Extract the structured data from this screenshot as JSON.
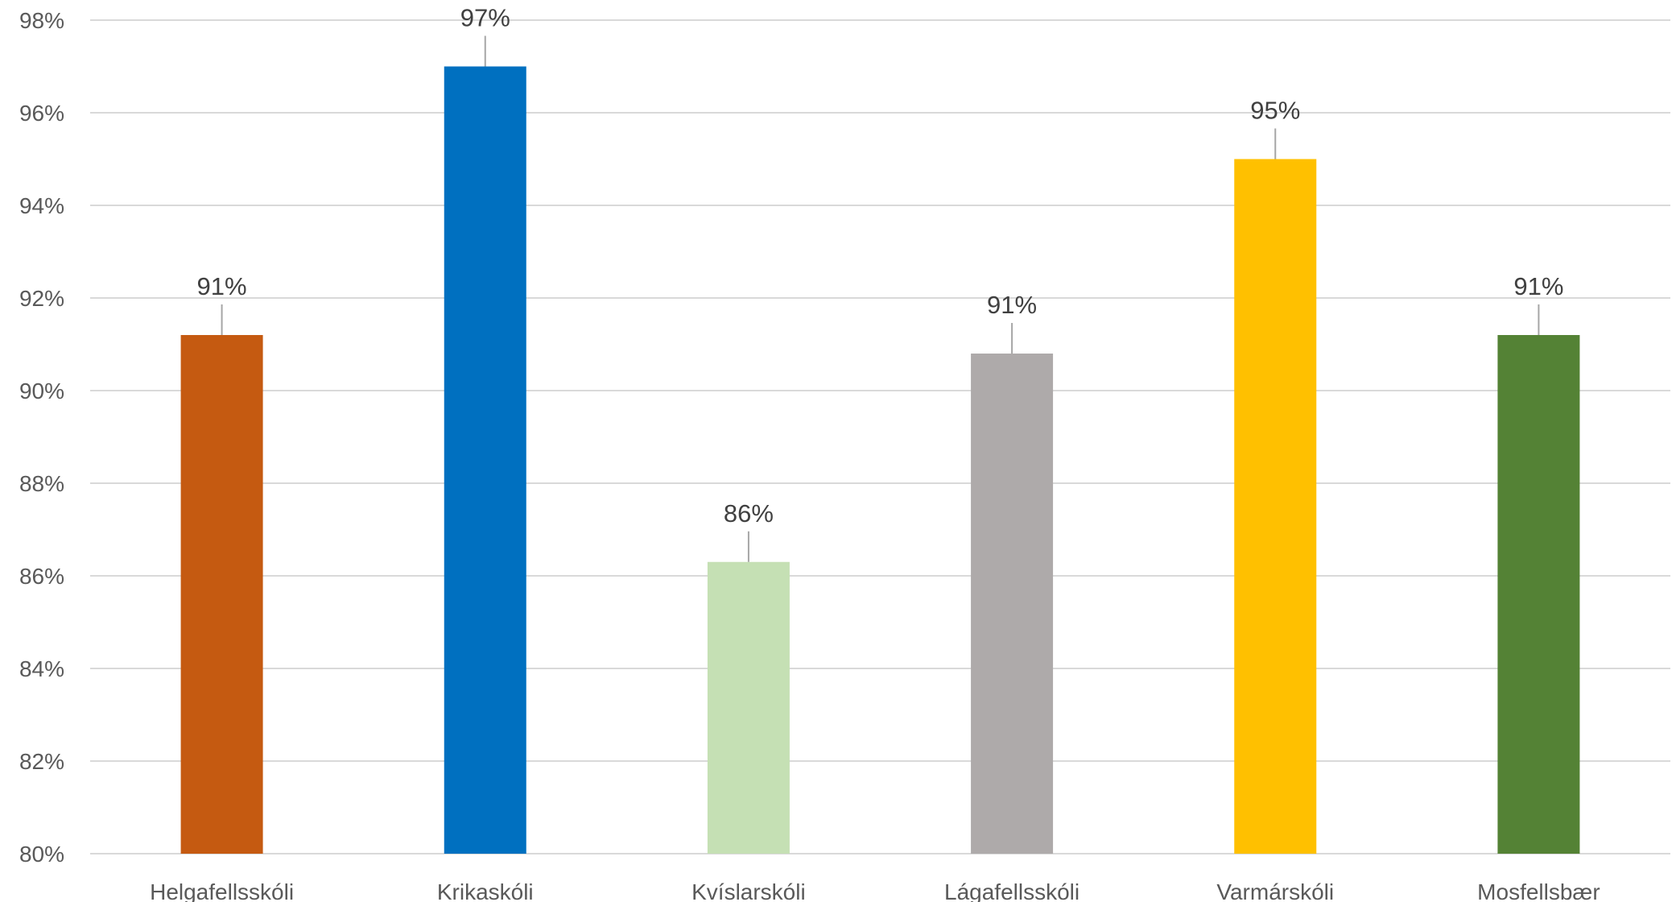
{
  "chart_data": {
    "type": "bar",
    "categories": [
      "Helgafellsskóli",
      "Krikaskóli",
      "Kvíslarskóli",
      "Lágafellsskóli",
      "Varmárskóli",
      "Mosfellsbær"
    ],
    "values": [
      91.2,
      97.0,
      86.3,
      90.8,
      95.0,
      91.2
    ],
    "data_labels": [
      "91%",
      "97%",
      "86%",
      "91%",
      "95%",
      "91%"
    ],
    "colors": [
      "#c55a11",
      "#0070c0",
      "#c5e0b4",
      "#aeaaaa",
      "#ffc000",
      "#548235"
    ],
    "ylim": [
      80,
      98
    ],
    "yticks": [
      80,
      82,
      84,
      86,
      88,
      90,
      92,
      94,
      96,
      98
    ],
    "ytick_labels": [
      "80%",
      "82%",
      "84%",
      "86%",
      "88%",
      "90%",
      "92%",
      "94%",
      "96%",
      "98%"
    ],
    "grid": true,
    "legend": "none",
    "title": "",
    "xlabel": "",
    "ylabel": ""
  }
}
